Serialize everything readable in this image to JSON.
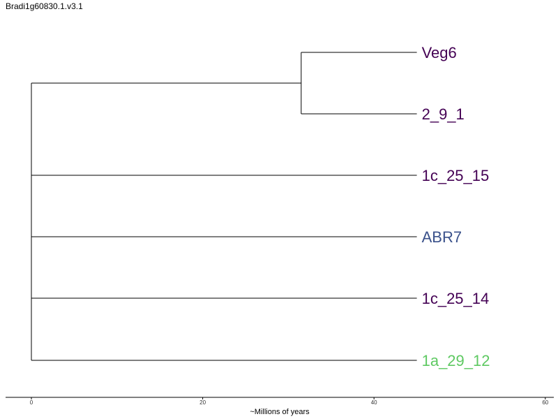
{
  "title": "Bradi1g60830.1.v3.1",
  "axis": {
    "label": "~Millions of years",
    "min": 0,
    "max": 60,
    "ticks": [
      0,
      20,
      40,
      60
    ]
  },
  "tips": [
    {
      "label": "Veg6",
      "color": "#440154"
    },
    {
      "label": "2_9_1",
      "color": "#440154"
    },
    {
      "label": "1c_25_15",
      "color": "#440154"
    },
    {
      "label": "ABR7",
      "color": "#3b528b"
    },
    {
      "label": "1c_25_14",
      "color": "#440154"
    },
    {
      "label": "1a_29_12",
      "color": "#5ec962"
    }
  ],
  "chart_data": {
    "type": "dendrogram",
    "root_age": 0,
    "tip_age": 45,
    "clade_node_age": 31.5,
    "clade": [
      "Veg6",
      "2_9_1"
    ]
  }
}
